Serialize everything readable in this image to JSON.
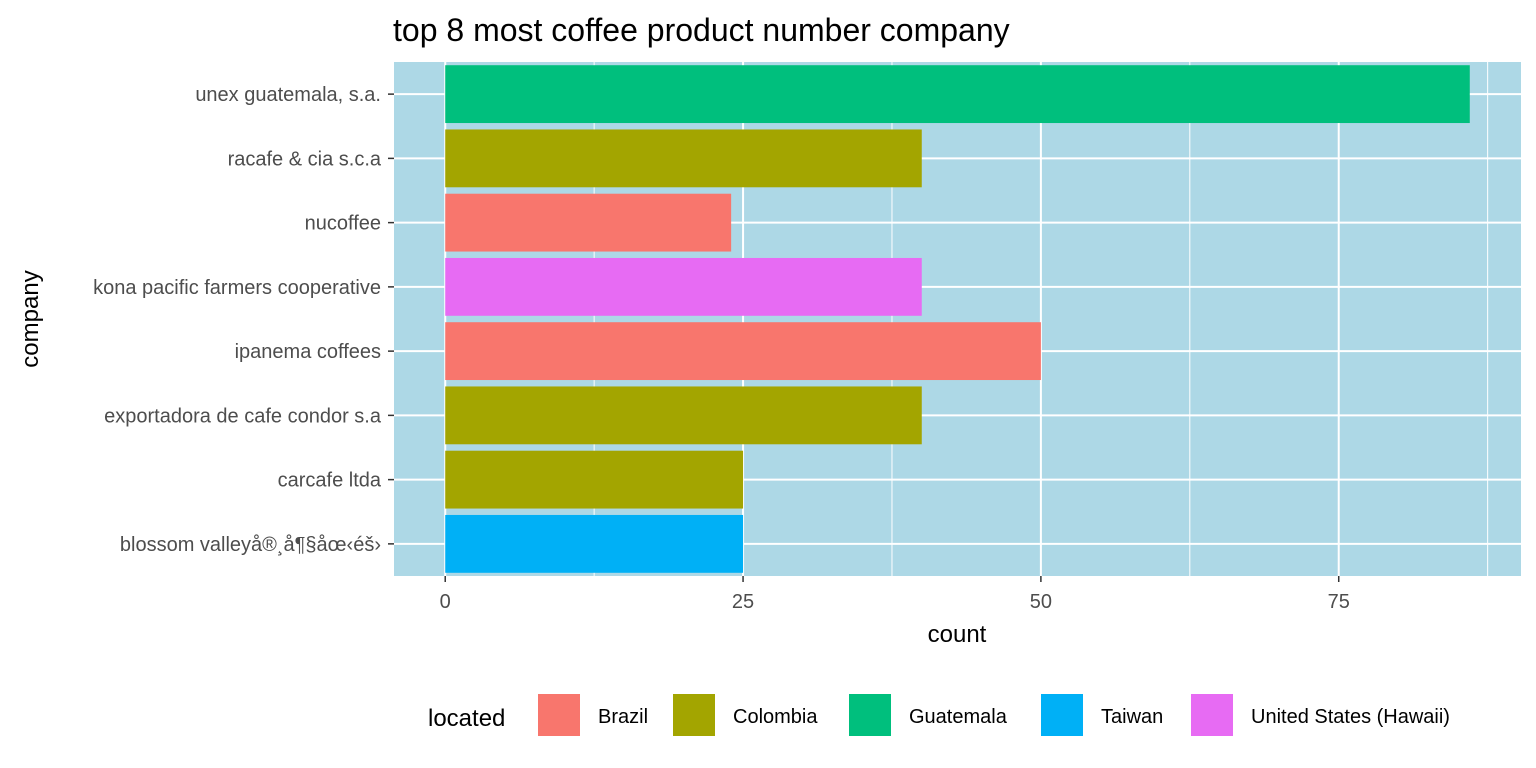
{
  "chart_data": {
    "type": "bar",
    "orientation": "horizontal",
    "title": "top 8 most coffee product number company",
    "xlabel": "count",
    "ylabel": "company",
    "categories": [
      "unex guatemala, s.a.",
      "racafe & cia s.c.a",
      "nucoffee",
      "kona pacific farmers cooperative",
      "ipanema coffees",
      "exportadora de cafe condor s.a",
      "carcafe ltda",
      "blossom valleyå®¸å¶§åœ‹éš›"
    ],
    "values": [
      86,
      40,
      24,
      40,
      50,
      40,
      25,
      25
    ],
    "located": [
      "Guatemala",
      "Colombia",
      "Brazil",
      "United States (Hawaii)",
      "Brazil",
      "Colombia",
      "Colombia",
      "Taiwan"
    ],
    "xlim": [
      -4.3,
      90.3
    ],
    "xticks": [
      0,
      25,
      50,
      75
    ],
    "xtick_labels": [
      "0",
      "25",
      "50",
      "75"
    ],
    "grid": true,
    "panel_background": "#add8e6",
    "legend": {
      "title": "located",
      "position": "bottom",
      "items": [
        {
          "label": "Brazil",
          "color": "#f8766d"
        },
        {
          "label": "Colombia",
          "color": "#a3a500"
        },
        {
          "label": "Guatemala",
          "color": "#00bf7d"
        },
        {
          "label": "Taiwan",
          "color": "#00b0f6"
        },
        {
          "label": "United States (Hawaii)",
          "color": "#e76bf3"
        }
      ]
    }
  }
}
